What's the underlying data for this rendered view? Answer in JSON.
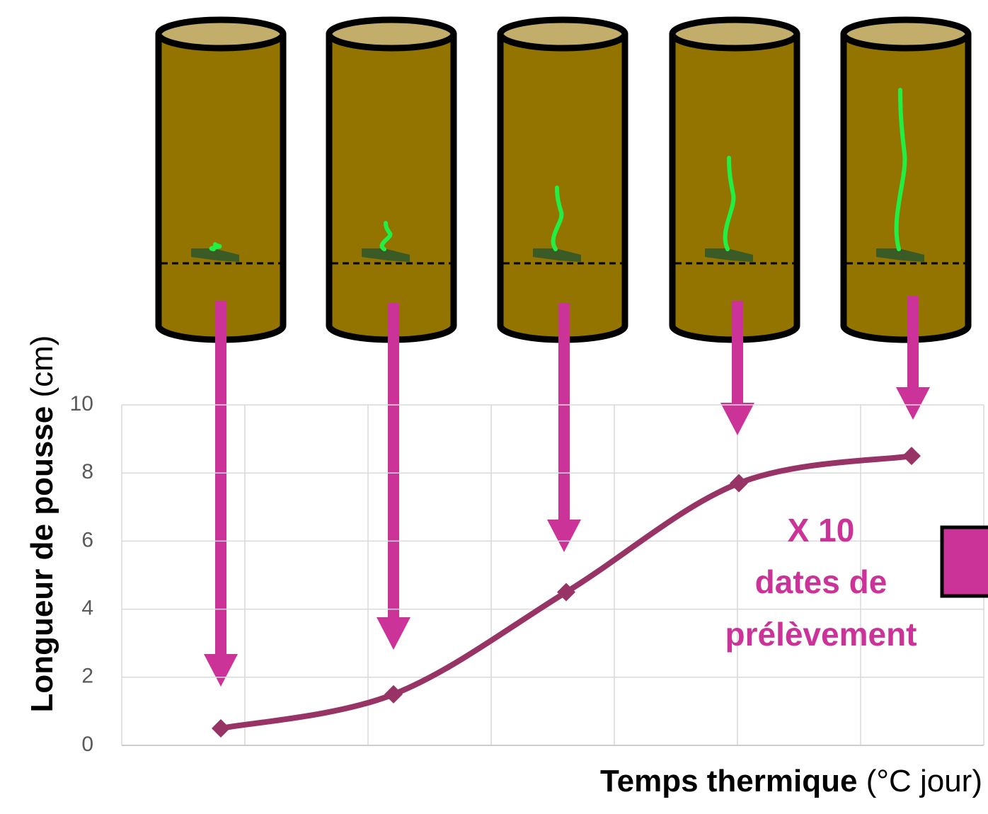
{
  "chart_data": {
    "type": "line",
    "categories": [
      null,
      null,
      null,
      null,
      null
    ],
    "values": [
      0.5,
      1.5,
      4.5,
      7.7,
      8.5
    ],
    "color": "#983365",
    "ylim": [
      0,
      10
    ],
    "yticks": [
      0,
      2,
      4,
      6,
      8,
      10
    ],
    "grid": true,
    "y_label": {
      "bold": "Longueur de pousse",
      "normal": "(cm)"
    },
    "x_label": {
      "bold": "Temps thermique",
      "normal": "(°C jour)"
    },
    "annotation": [
      "X 10",
      "dates de",
      "prélèvement"
    ],
    "annotation_color": "#cc3399"
  }
}
